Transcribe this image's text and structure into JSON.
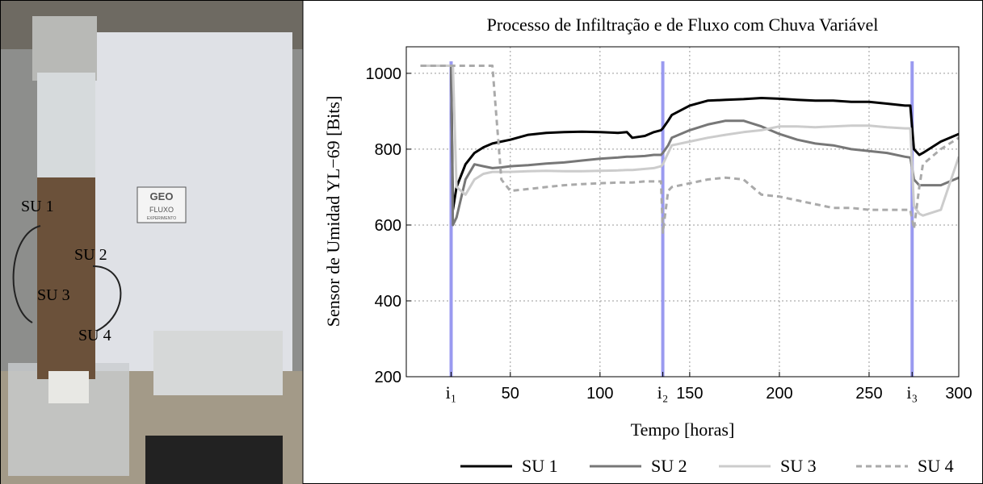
{
  "photo": {
    "labels": [
      "SU 1",
      "SU 2",
      "SU 3",
      "SU 4"
    ],
    "logo": [
      "GEO",
      "FLUXO",
      "EXPERIMENTO"
    ]
  },
  "chart_data": {
    "type": "line",
    "title": "Processo de Infiltração e de Fluxo com Chuva Variável",
    "x_label": "Tempo [horas]",
    "y_label": "Sensor de Umidad YL−69 [Bits]",
    "xlim": [
      -8,
      300
    ],
    "ylim": [
      200,
      1070
    ],
    "xticks": [
      {
        "value": 17,
        "label": "i₁"
      },
      50,
      100,
      {
        "value": 135,
        "label": "i₂"
      },
      150,
      200,
      250,
      {
        "value": 274,
        "label": "i₃"
      },
      300
    ],
    "yticks": [
      200,
      400,
      600,
      800,
      1000
    ],
    "grid": true,
    "event_color": "#9a9af0",
    "legend": "bottom",
    "x": [
      0,
      5,
      10,
      15,
      17,
      18,
      20,
      25,
      30,
      35,
      40,
      45,
      50,
      60,
      70,
      80,
      90,
      100,
      110,
      115,
      118,
      125,
      130,
      134,
      135,
      138,
      140,
      150,
      160,
      170,
      180,
      190,
      200,
      210,
      220,
      230,
      240,
      250,
      260,
      270,
      273,
      275,
      278,
      280,
      290,
      300
    ],
    "series": [
      {
        "name": "SU 1",
        "color": "#000000",
        "dash": false,
        "values": [
          1020,
          1020,
          1020,
          1020,
          1020,
          640,
          700,
          760,
          790,
          805,
          815,
          820,
          825,
          838,
          843,
          845,
          846,
          845,
          843,
          845,
          830,
          835,
          845,
          850,
          855,
          875,
          890,
          915,
          928,
          930,
          932,
          935,
          933,
          930,
          928,
          928,
          925,
          925,
          920,
          915,
          915,
          800,
          785,
          790,
          820,
          840
        ]
      },
      {
        "name": "SU 2",
        "color": "#777777",
        "dash": false,
        "values": [
          1020,
          1020,
          1020,
          1020,
          1020,
          600,
          620,
          720,
          760,
          755,
          750,
          752,
          755,
          758,
          762,
          765,
          770,
          775,
          778,
          780,
          780,
          782,
          785,
          785,
          790,
          810,
          830,
          850,
          865,
          875,
          875,
          860,
          840,
          825,
          815,
          810,
          800,
          795,
          790,
          780,
          778,
          720,
          705,
          705,
          705,
          725
        ]
      },
      {
        "name": "SU 3",
        "color": "#cccccc",
        "dash": false,
        "values": [
          1020,
          1020,
          1020,
          1020,
          1020,
          1020,
          700,
          680,
          720,
          735,
          740,
          740,
          740,
          742,
          743,
          742,
          742,
          743,
          744,
          745,
          745,
          748,
          750,
          755,
          760,
          790,
          810,
          820,
          830,
          838,
          845,
          850,
          860,
          860,
          858,
          860,
          862,
          862,
          858,
          855,
          855,
          650,
          630,
          625,
          640,
          780
        ]
      },
      {
        "name": "SU 4",
        "color": "#aaaaaa",
        "dash": true,
        "values": [
          1020,
          1020,
          1020,
          1020,
          1020,
          1020,
          1020,
          1020,
          1020,
          1020,
          1020,
          720,
          690,
          695,
          700,
          705,
          708,
          710,
          712,
          712,
          712,
          715,
          715,
          715,
          580,
          690,
          700,
          710,
          720,
          725,
          720,
          680,
          675,
          665,
          655,
          645,
          645,
          640,
          640,
          640,
          640,
          590,
          700,
          760,
          800,
          830
        ]
      }
    ]
  }
}
